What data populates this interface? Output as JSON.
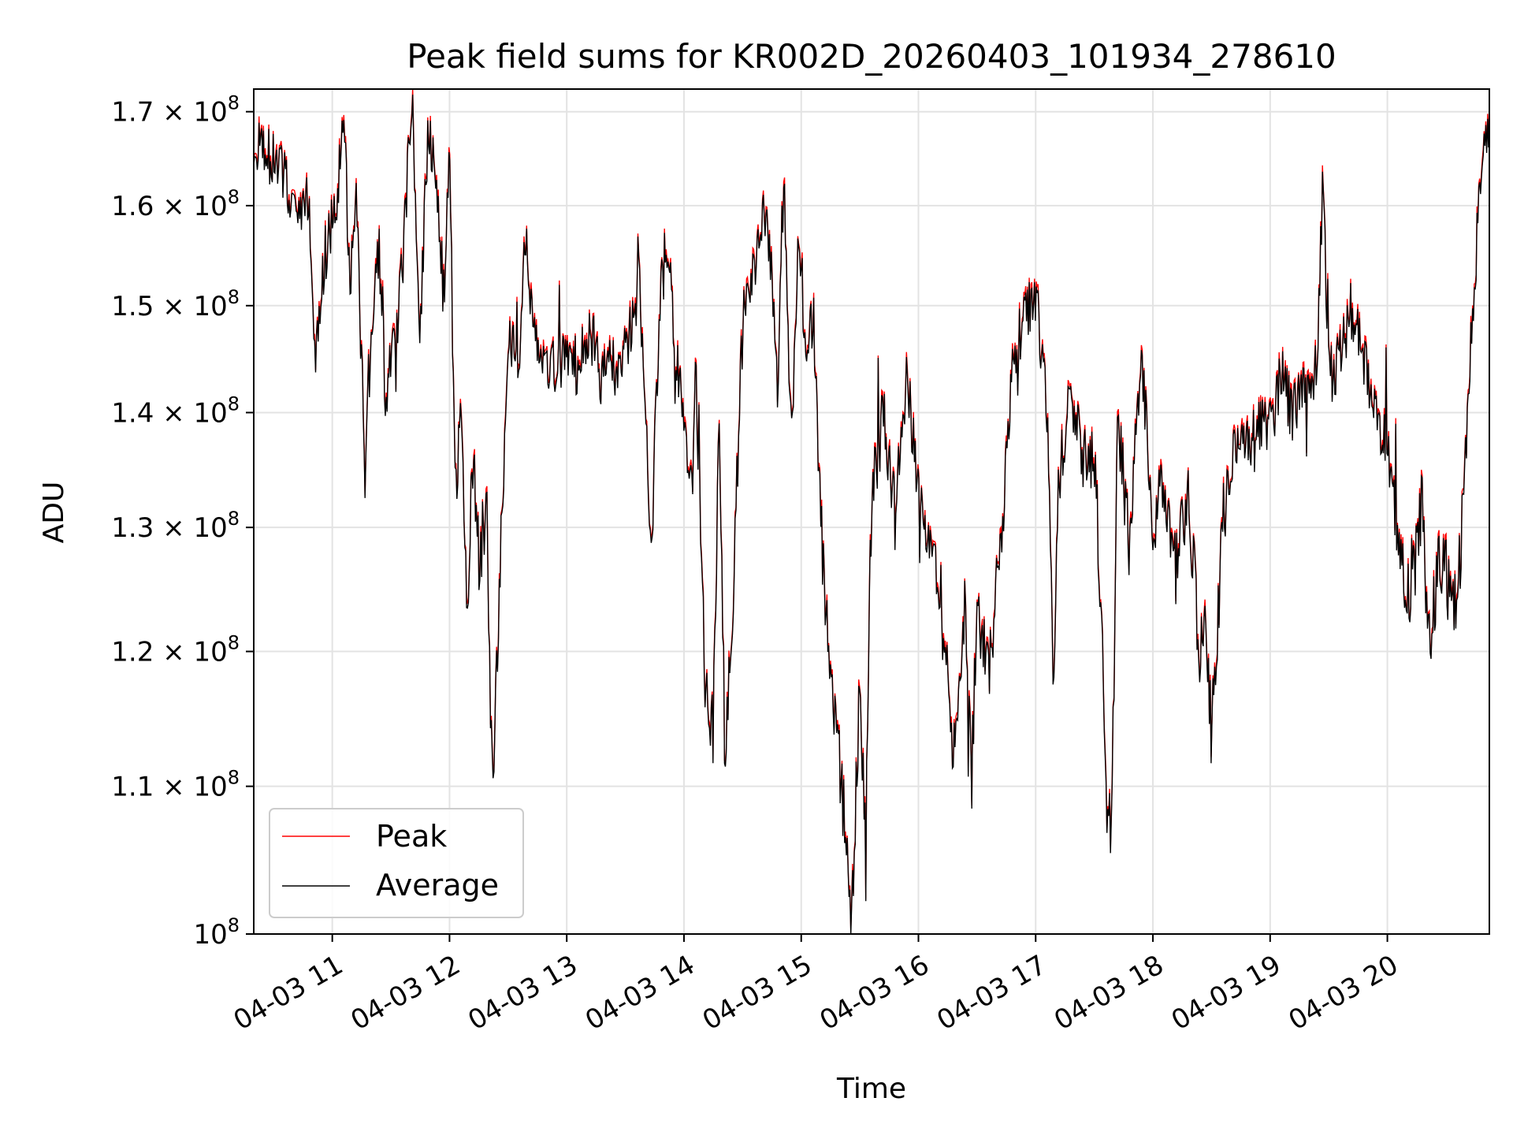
{
  "chart_data": {
    "type": "line",
    "title": "Peak field sums for KR002D_20260403_101934_278610",
    "xlabel": "Time",
    "ylabel": "ADU",
    "yscale": "log",
    "ylim": [
      100000000,
      172500000
    ],
    "xlim_hours": [
      10.33,
      20.87
    ],
    "grid": true,
    "legend_position": "lower-left",
    "colors": {
      "peak": "#ff0000",
      "average": "#000000",
      "grid": "#e3e3e3"
    },
    "x_ticks": [
      {
        "value": 11,
        "label": "04-03 11"
      },
      {
        "value": 12,
        "label": "04-03 12"
      },
      {
        "value": 13,
        "label": "04-03 13"
      },
      {
        "value": 14,
        "label": "04-03 14"
      },
      {
        "value": 15,
        "label": "04-03 15"
      },
      {
        "value": 16,
        "label": "04-03 16"
      },
      {
        "value": 17,
        "label": "04-03 17"
      },
      {
        "value": 18,
        "label": "04-03 18"
      },
      {
        "value": 19,
        "label": "04-03 19"
      },
      {
        "value": 20,
        "label": "04-03 20"
      }
    ],
    "y_ticks": [
      {
        "value": 100000000,
        "mant": "",
        "base": "10",
        "exp": "8"
      },
      {
        "value": 110000000,
        "mant": "1.1 × ",
        "base": "10",
        "exp": "8"
      },
      {
        "value": 120000000,
        "mant": "1.2 × ",
        "base": "10",
        "exp": "8"
      },
      {
        "value": 130000000,
        "mant": "1.3 × ",
        "base": "10",
        "exp": "8"
      },
      {
        "value": 140000000,
        "mant": "1.4 × ",
        "base": "10",
        "exp": "8"
      },
      {
        "value": 150000000,
        "mant": "1.5 × ",
        "base": "10",
        "exp": "8"
      },
      {
        "value": 160000000,
        "mant": "1.6 × ",
        "base": "10",
        "exp": "8"
      },
      {
        "value": 170000000,
        "mant": "1.7 × ",
        "base": "10",
        "exp": "8"
      }
    ],
    "series": [
      {
        "name": "Average",
        "keypoints": [
          [
            10.33,
            1.66
          ],
          [
            10.4,
            1.66
          ],
          [
            10.5,
            1.65
          ],
          [
            10.6,
            1.63
          ],
          [
            10.7,
            1.58
          ],
          [
            10.8,
            1.61
          ],
          [
            10.85,
            1.46
          ],
          [
            10.95,
            1.55
          ],
          [
            11.05,
            1.62
          ],
          [
            11.1,
            1.69
          ],
          [
            11.15,
            1.52
          ],
          [
            11.2,
            1.62
          ],
          [
            11.25,
            1.44
          ],
          [
            11.28,
            1.33
          ],
          [
            11.33,
            1.49
          ],
          [
            11.4,
            1.55
          ],
          [
            11.45,
            1.42
          ],
          [
            11.55,
            1.48
          ],
          [
            11.6,
            1.54
          ],
          [
            11.68,
            1.71
          ],
          [
            11.75,
            1.47
          ],
          [
            11.82,
            1.69
          ],
          [
            11.9,
            1.6
          ],
          [
            11.95,
            1.51
          ],
          [
            12.0,
            1.64
          ],
          [
            12.05,
            1.32
          ],
          [
            12.1,
            1.4
          ],
          [
            12.15,
            1.22
          ],
          [
            12.2,
            1.36
          ],
          [
            12.25,
            1.27
          ],
          [
            12.32,
            1.32
          ],
          [
            12.35,
            1.15
          ],
          [
            12.38,
            1.13
          ],
          [
            12.45,
            1.32
          ],
          [
            12.5,
            1.47
          ],
          [
            12.55,
            1.46
          ],
          [
            12.6,
            1.46
          ],
          [
            12.65,
            1.57
          ],
          [
            12.7,
            1.49
          ],
          [
            12.8,
            1.46
          ],
          [
            12.9,
            1.44
          ],
          [
            13.0,
            1.46
          ],
          [
            13.1,
            1.44
          ],
          [
            13.2,
            1.48
          ],
          [
            13.3,
            1.43
          ],
          [
            13.45,
            1.45
          ],
          [
            13.55,
            1.48
          ],
          [
            13.62,
            1.52
          ],
          [
            13.72,
            1.28
          ],
          [
            13.8,
            1.51
          ],
          [
            13.85,
            1.56
          ],
          [
            13.92,
            1.48
          ],
          [
            14.0,
            1.38
          ],
          [
            14.05,
            1.33
          ],
          [
            14.1,
            1.44
          ],
          [
            14.18,
            1.18
          ],
          [
            14.25,
            1.14
          ],
          [
            14.3,
            1.38
          ],
          [
            14.35,
            1.12
          ],
          [
            14.42,
            1.25
          ],
          [
            14.5,
            1.48
          ],
          [
            14.58,
            1.53
          ],
          [
            14.7,
            1.6
          ],
          [
            14.8,
            1.43
          ],
          [
            14.85,
            1.63
          ],
          [
            14.92,
            1.36
          ],
          [
            14.98,
            1.58
          ],
          [
            15.05,
            1.43
          ],
          [
            15.1,
            1.5
          ],
          [
            15.15,
            1.34
          ],
          [
            15.2,
            1.25
          ],
          [
            15.28,
            1.16
          ],
          [
            15.35,
            1.1
          ],
          [
            15.42,
            1.0
          ],
          [
            15.5,
            1.17
          ],
          [
            15.55,
            1.06
          ],
          [
            15.6,
            1.32
          ],
          [
            15.7,
            1.4
          ],
          [
            15.8,
            1.31
          ],
          [
            15.9,
            1.43
          ],
          [
            16.0,
            1.32
          ],
          [
            16.1,
            1.27
          ],
          [
            16.2,
            1.24
          ],
          [
            16.3,
            1.12
          ],
          [
            16.4,
            1.25
          ],
          [
            16.45,
            1.1
          ],
          [
            16.5,
            1.24
          ],
          [
            16.6,
            1.18
          ],
          [
            16.7,
            1.28
          ],
          [
            16.8,
            1.44
          ],
          [
            16.9,
            1.49
          ],
          [
            17.0,
            1.51
          ],
          [
            17.1,
            1.4
          ],
          [
            17.15,
            1.19
          ],
          [
            17.2,
            1.34
          ],
          [
            17.3,
            1.42
          ],
          [
            17.4,
            1.36
          ],
          [
            17.5,
            1.36
          ],
          [
            17.55,
            1.26
          ],
          [
            17.6,
            1.1
          ],
          [
            17.65,
            1.07
          ],
          [
            17.7,
            1.39
          ],
          [
            17.8,
            1.29
          ],
          [
            17.9,
            1.46
          ],
          [
            18.0,
            1.3
          ],
          [
            18.1,
            1.34
          ],
          [
            18.2,
            1.27
          ],
          [
            18.3,
            1.33
          ],
          [
            18.4,
            1.2
          ],
          [
            18.45,
            1.23
          ],
          [
            18.5,
            1.13
          ],
          [
            18.55,
            1.22
          ],
          [
            18.6,
            1.31
          ],
          [
            18.7,
            1.37
          ],
          [
            18.8,
            1.37
          ],
          [
            18.9,
            1.38
          ],
          [
            19.0,
            1.39
          ],
          [
            19.1,
            1.43
          ],
          [
            19.2,
            1.4
          ],
          [
            19.3,
            1.42
          ],
          [
            19.4,
            1.44
          ],
          [
            19.45,
            1.62
          ],
          [
            19.5,
            1.43
          ],
          [
            19.6,
            1.45
          ],
          [
            19.7,
            1.5
          ],
          [
            19.8,
            1.44
          ],
          [
            19.9,
            1.41
          ],
          [
            20.0,
            1.37
          ],
          [
            20.1,
            1.28
          ],
          [
            20.2,
            1.24
          ],
          [
            20.3,
            1.33
          ],
          [
            20.35,
            1.2
          ],
          [
            20.45,
            1.28
          ],
          [
            20.55,
            1.24
          ],
          [
            20.6,
            1.24
          ],
          [
            20.65,
            1.33
          ],
          [
            20.7,
            1.45
          ],
          [
            20.8,
            1.63
          ],
          [
            20.87,
            1.69
          ]
        ]
      },
      {
        "name": "Peak",
        "offset": 0.003
      }
    ]
  }
}
